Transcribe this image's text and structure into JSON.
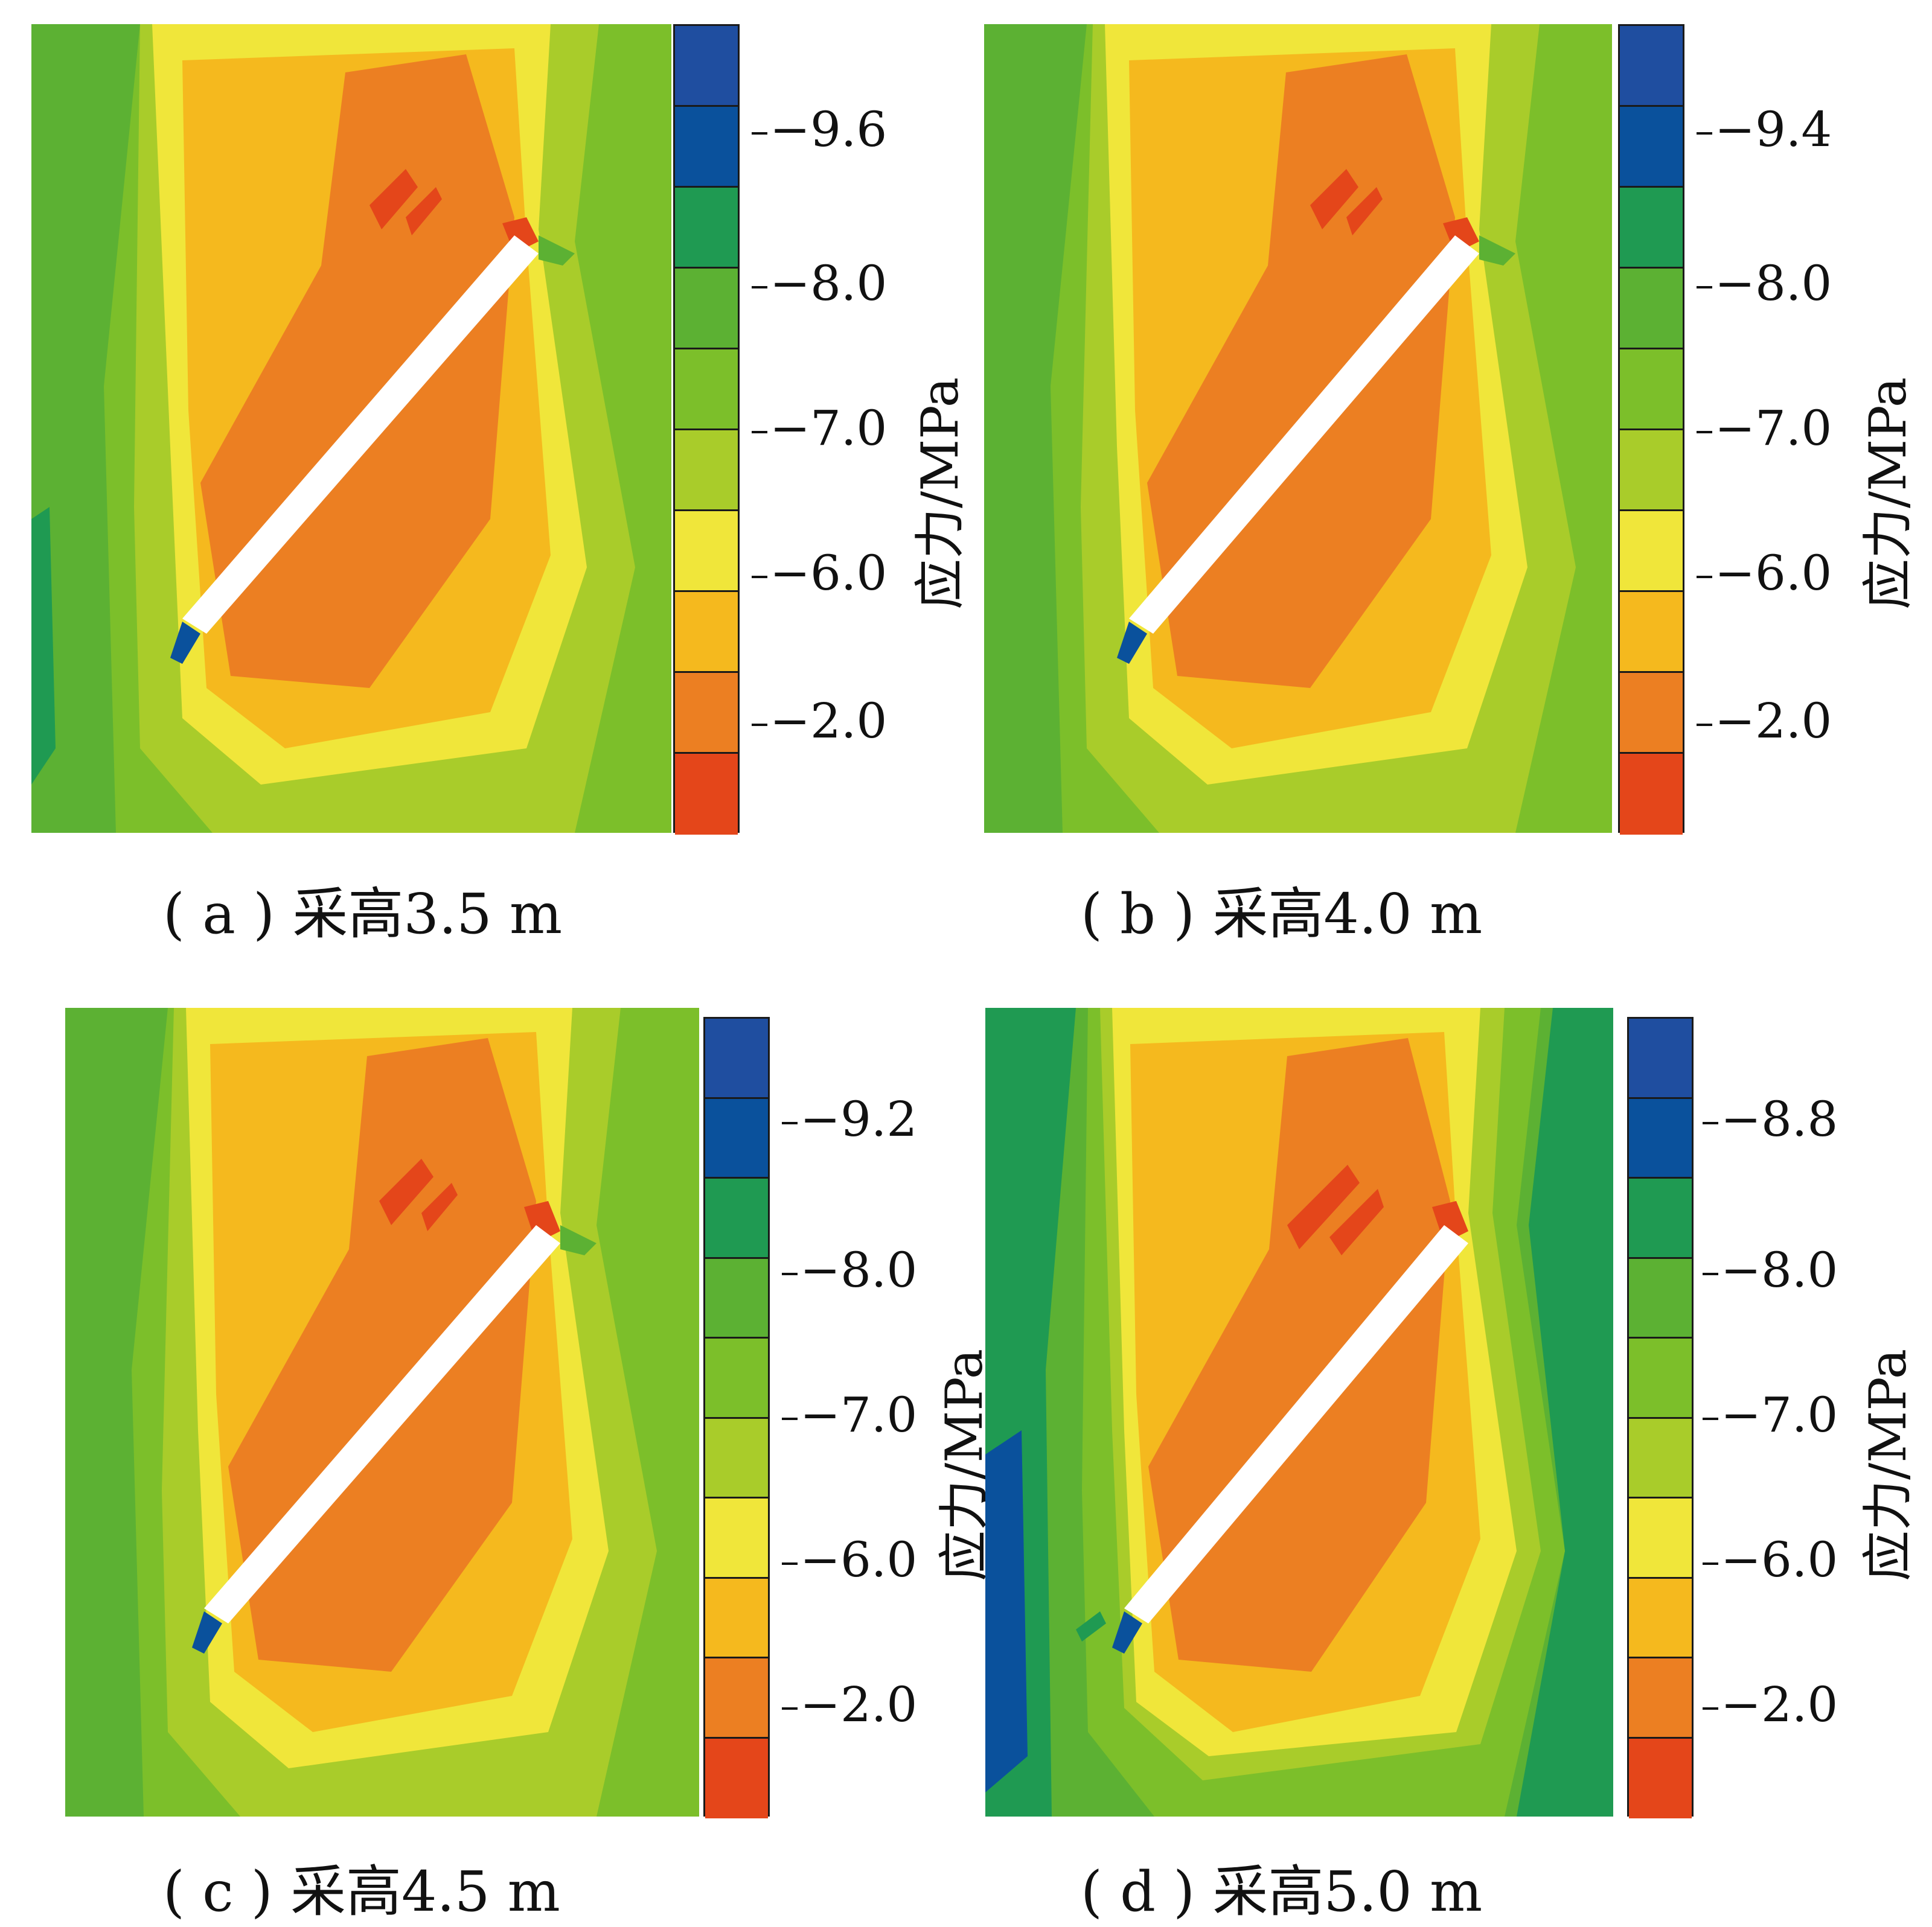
{
  "colors": {
    "segments": [
      "#1f4ea0",
      "#0a519c",
      "#1f9a52",
      "#5cb133",
      "#7cbf2a",
      "#a9cc2a",
      "#f0e63a",
      "#f5b91e",
      "#ec7f22",
      "#e4461a"
    ],
    "background_field": "#7cbf2a",
    "crack": "#ffffff"
  },
  "colorbar": {
    "segments": [
      "seg-0",
      "seg-1",
      "seg-2",
      "seg-3",
      "seg-4",
      "seg-5",
      "seg-6",
      "seg-7",
      "seg-8",
      "seg-9"
    ]
  },
  "panels": [
    {
      "caption": "( a ) 采高3.5 m",
      "unit_label": "应力/MPa",
      "tick_labels": [
        "−9.6",
        "−8.0",
        "−7.0",
        "−6.0",
        "−2.0"
      ]
    },
    {
      "caption": "( b ) 采高4.0 m",
      "unit_label": "应力/MPa",
      "tick_labels": [
        "−9.4",
        "−8.0",
        "−7.0",
        "−6.0",
        "−2.0"
      ]
    },
    {
      "caption": "( c ) 采高4.5 m",
      "unit_label": "应力/MPa",
      "tick_labels": [
        "−9.2",
        "−8.0",
        "−7.0",
        "−6.0",
        "−2.0"
      ]
    },
    {
      "caption": "( d ) 采高5.0 m",
      "unit_label": "应力/MPa",
      "tick_labels": [
        "−8.8",
        "−8.0",
        "−7.0",
        "−6.0",
        "−2.0"
      ]
    }
  ]
}
